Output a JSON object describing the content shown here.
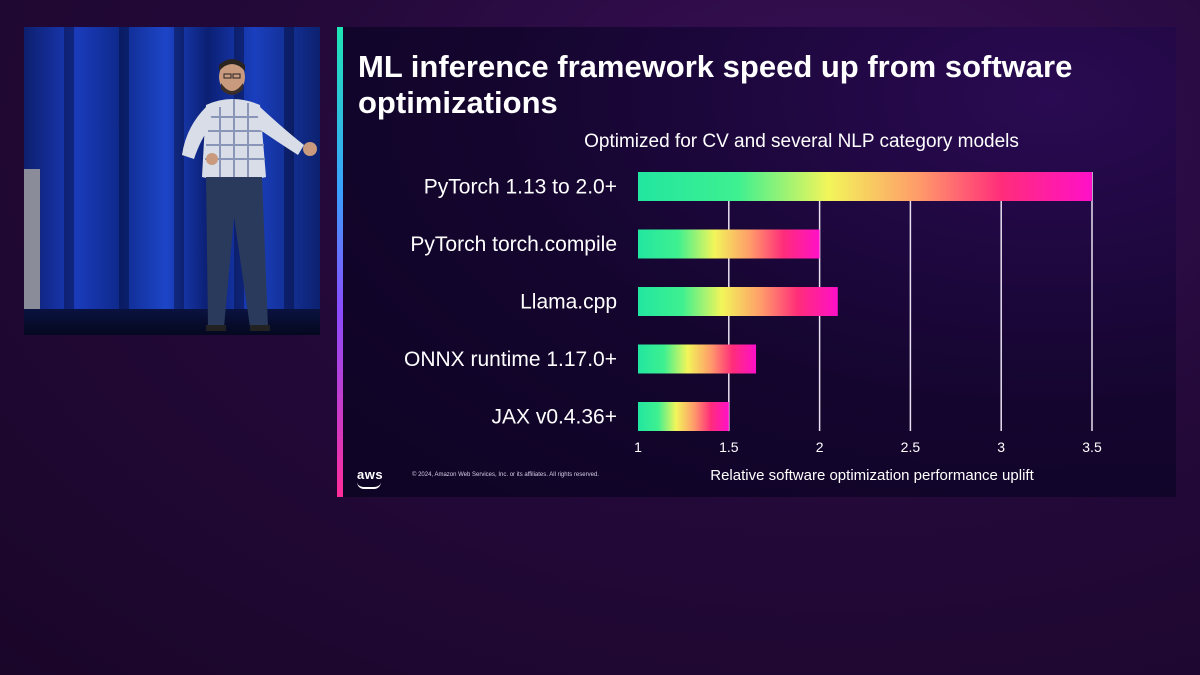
{
  "slide": {
    "title": "ML inference framework speed up from software optimizations",
    "footer_logo": "aws",
    "copyright": "© 2024, Amazon Web Services, Inc. or its affiliates. All rights reserved."
  },
  "chart_data": {
    "type": "bar",
    "orientation": "horizontal",
    "title": "Optimized for CV and several NLP category models",
    "xlabel": "Relative software optimization performance uplift",
    "ylabel": "",
    "categories": [
      "PyTorch 1.13 to 2.0+",
      "PyTorch torch.compile",
      "Llama.cpp",
      "ONNX runtime 1.17.0+",
      "JAX v0.4.36+"
    ],
    "values": [
      3.5,
      2.0,
      2.1,
      1.65,
      1.5
    ],
    "xlim": [
      1,
      3.5
    ],
    "xticks": [
      "1",
      "1.5",
      "2",
      "2.5",
      "3",
      "3.5"
    ],
    "grid": "vertical",
    "gradient_colors": [
      "#22e6a0",
      "#f2f55a",
      "#ff2d7a",
      "#ff10c8"
    ]
  }
}
